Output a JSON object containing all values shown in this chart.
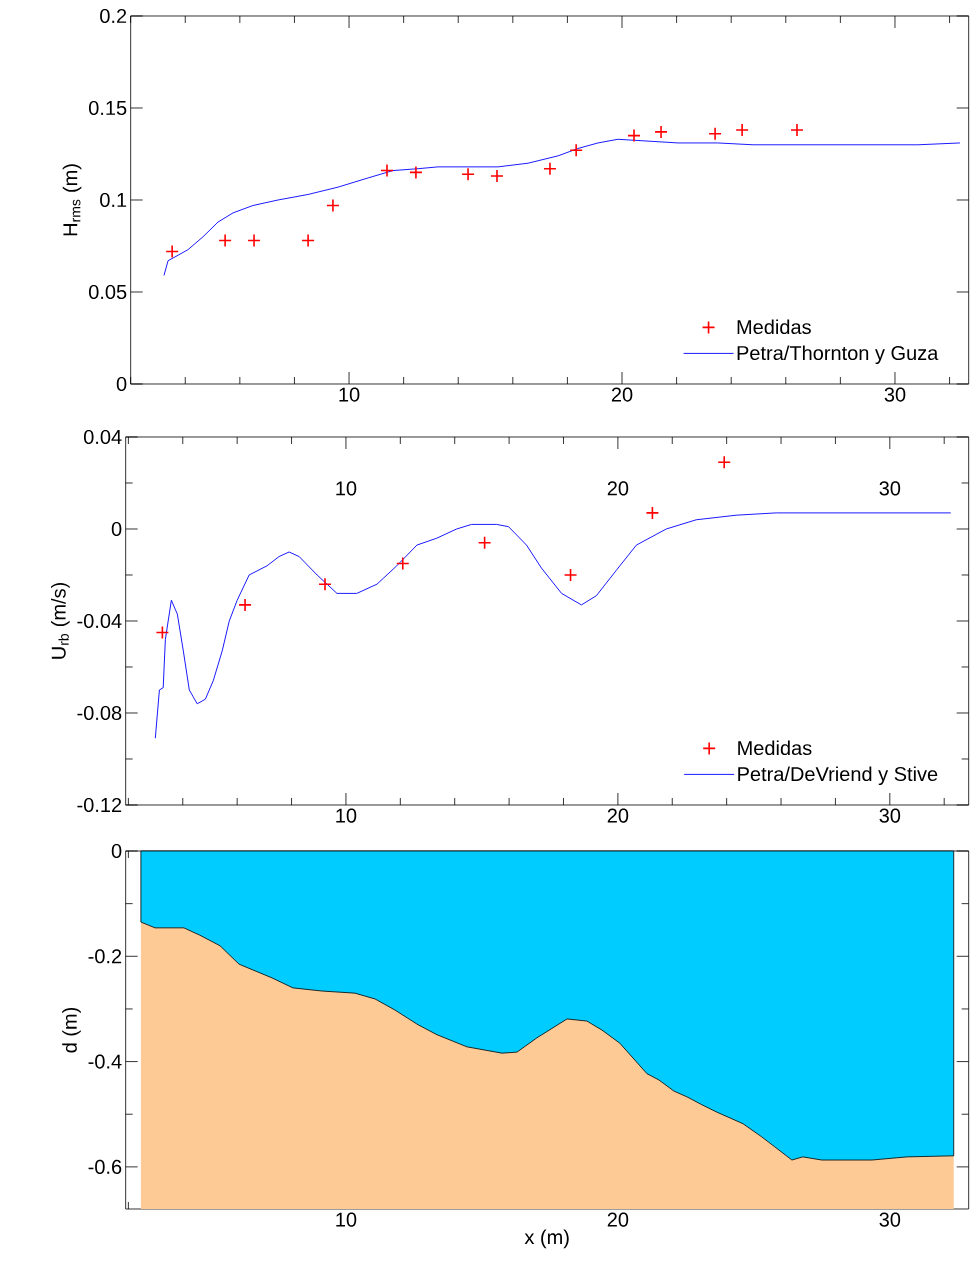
{
  "chart_data": [
    {
      "type": "line",
      "ylabel": "H$_{rms}$ (m)",
      "xlim": [
        2,
        32.7
      ],
      "ylim": [
        0,
        0.2
      ],
      "xticks": [
        10,
        20,
        30
      ],
      "yticks": [
        0,
        0.05,
        0.1,
        0.15,
        0.2
      ],
      "legend": "bottom right",
      "series": [
        {
          "name": "Medidas",
          "type": "scatter",
          "marker": "cross",
          "color": "#ff0000",
          "x": [
            3.52,
            5.46,
            6.52,
            8.5,
            9.41,
            11.39,
            12.45,
            14.36,
            15.42,
            17.36,
            18.32,
            20.44,
            21.43,
            23.41,
            24.4,
            26.41
          ],
          "values": [
            0.072,
            0.078,
            0.078,
            0.078,
            0.097,
            0.116,
            0.115,
            0.114,
            0.113,
            0.117,
            0.127,
            0.135,
            0.137,
            0.136,
            0.138,
            0.138
          ]
        },
        {
          "name": "Petra/Thornton y Guza",
          "color": "#0000ff",
          "x": [
            3.22,
            3.37,
            3.74,
            4.1,
            4.65,
            5.2,
            5.75,
            6.48,
            7.4,
            8.5,
            9.6,
            10.7,
            11.61,
            12.53,
            13.26,
            15.46,
            16.56,
            17.66,
            18.39,
            19.12,
            19.85,
            20.95,
            22.05,
            23.5,
            24.8,
            27.18,
            30.84,
            32.38
          ],
          "values": [
            0.059,
            0.067,
            0.07,
            0.073,
            0.08,
            0.088,
            0.093,
            0.097,
            0.1,
            0.103,
            0.107,
            0.112,
            0.116,
            0.117,
            0.118,
            0.118,
            0.12,
            0.124,
            0.128,
            0.131,
            0.133,
            0.132,
            0.131,
            0.131,
            0.13,
            0.13,
            0.13,
            0.131
          ]
        }
      ]
    },
    {
      "type": "line",
      "ylabel": "U$_{rb}$ (m/s)",
      "xlim": [
        1.9,
        32.9
      ],
      "ylim": [
        -0.12,
        0.04
      ],
      "xticks": [
        10,
        20,
        30
      ],
      "x2lim": [
        1.9,
        32.9
      ],
      "x2ticks": [
        10,
        20,
        30
      ],
      "yticks": [
        -0.12,
        -0.08,
        -0.04,
        0,
        0.04
      ],
      "legend": "bottom right",
      "series": [
        {
          "name": "Medidas",
          "type": "scatter",
          "marker": "cross",
          "color": "#ff0000",
          "x": [
            3.25,
            6.29,
            9.23,
            12.09,
            15.1,
            18.26,
            21.27,
            23.91
          ],
          "values": [
            -0.045,
            -0.033,
            -0.024,
            -0.015,
            -0.006,
            -0.02,
            0.007,
            0.029
          ]
        },
        {
          "name": "Petra/DeVriend y Stive",
          "color": "#0000ff",
          "x": [
            2.99,
            3.14,
            3.28,
            3.36,
            3.58,
            3.8,
            4.02,
            4.24,
            4.53,
            4.83,
            5.12,
            5.45,
            5.71,
            6.0,
            6.44,
            7.1,
            7.54,
            7.91,
            8.28,
            8.94,
            9.67,
            10.4,
            11.14,
            11.87,
            12.61,
            13.34,
            14.07,
            14.62,
            15.54,
            15.98,
            16.64,
            17.19,
            17.93,
            18.66,
            19.21,
            19.94,
            20.68,
            21.78,
            22.88,
            24.35,
            25.82,
            32.24
          ],
          "values": [
            -0.091,
            -0.07,
            -0.069,
            -0.048,
            -0.031,
            -0.037,
            -0.053,
            -0.07,
            -0.076,
            -0.074,
            -0.066,
            -0.053,
            -0.04,
            -0.031,
            -0.02,
            -0.016,
            -0.012,
            -0.01,
            -0.012,
            -0.02,
            -0.028,
            -0.028,
            -0.024,
            -0.016,
            -0.007,
            -0.004,
            0.0,
            0.002,
            0.002,
            0.001,
            -0.007,
            -0.017,
            -0.028,
            -0.033,
            -0.029,
            -0.018,
            -0.007,
            0.0,
            0.004,
            0.006,
            0.007,
            0.007
          ]
        }
      ]
    },
    {
      "type": "area",
      "xlabel": "x (m)",
      "ylabel": "d (m)",
      "xlim": [
        1.9,
        32.9
      ],
      "ylim": [
        -0.68,
        0
      ],
      "xticks": [
        10,
        20,
        30
      ],
      "yticks": [
        -0.6,
        -0.4,
        -0.2,
        0
      ],
      "bands": [
        {
          "axis": "x",
          "from": 2.46,
          "to": 32.35,
          "color": "#fdca96"
        }
      ],
      "series": [
        {
          "color": "#00ccff",
          "x": [
            2.46,
            2.98,
            4.04,
            4.63,
            5.37,
            6.07,
            7.28,
            8.05,
            9.12,
            10.33,
            11.07,
            11.8,
            12.65,
            13.35,
            14.45,
            15.74,
            16.29,
            17.02,
            18.13,
            18.86,
            19.41,
            20.07,
            21.07,
            21.51,
            22.06,
            22.54,
            23.09,
            23.64,
            24.6,
            25.29,
            25.77,
            26.4,
            26.8,
            27.5,
            29.34,
            30.63,
            32.35
          ],
          "values": [
            -0.135,
            -0.146,
            -0.146,
            -0.16,
            -0.18,
            -0.215,
            -0.241,
            -0.26,
            -0.266,
            -0.27,
            -0.281,
            -0.302,
            -0.33,
            -0.349,
            -0.372,
            -0.384,
            -0.382,
            -0.355,
            -0.319,
            -0.323,
            -0.34,
            -0.365,
            -0.423,
            -0.435,
            -0.456,
            -0.467,
            -0.482,
            -0.496,
            -0.518,
            -0.543,
            -0.562,
            -0.587,
            -0.581,
            -0.587,
            -0.587,
            -0.581,
            -0.579
          ]
        }
      ]
    }
  ]
}
